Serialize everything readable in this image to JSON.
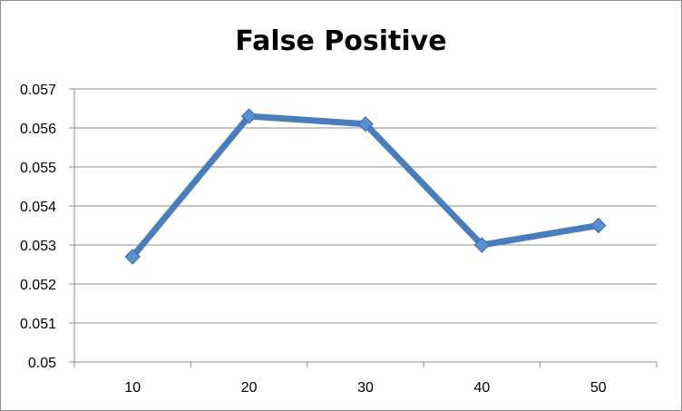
{
  "chart_data": {
    "type": "line",
    "title": "False Positive",
    "xlabel": "",
    "ylabel": "",
    "categories": [
      "10",
      "20",
      "30",
      "40",
      "50"
    ],
    "series": [
      {
        "values": [
          0.0527,
          0.0563,
          0.0561,
          0.053,
          0.0535
        ]
      }
    ],
    "ylim": [
      0.05,
      0.057
    ],
    "yticks": [
      "0.05",
      "0.051",
      "0.052",
      "0.053",
      "0.054",
      "0.055",
      "0.056",
      "0.057"
    ],
    "grid": true,
    "line_color": "#4a7ebb",
    "marker": "diamond",
    "marker_color": "#5b8fd4"
  }
}
